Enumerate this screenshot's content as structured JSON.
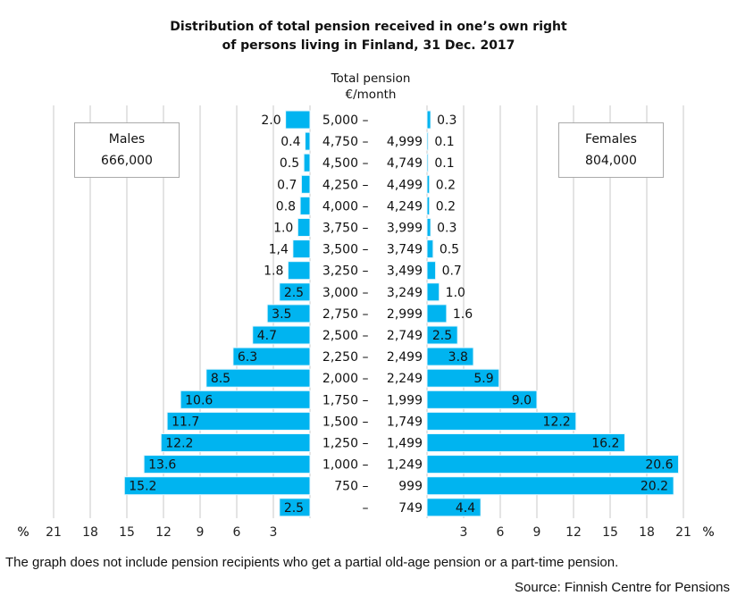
{
  "chart_data": {
    "type": "bar",
    "orientation": "horizontal-pyramid",
    "title_line1": "Distribution of total pension received in one’s own right",
    "title_line2": "of persons living in Finland, 31 Dec. 2017",
    "category_axis_label_line1": "Total pension",
    "category_axis_label_line2": "€/month",
    "categories": [
      "5,000 –",
      "4,750 – 4,999",
      "4,500 – 4,749",
      "4,250 – 4,499",
      "4,000 – 4,249",
      "3,750 – 3,999",
      "3,500 – 3,749",
      "3,250 – 3,499",
      "3,000 – 3,249",
      "2,750 – 2,999",
      "2,500 – 2,749",
      "2,250 – 2,499",
      "2,000 – 2,249",
      "1,750 – 1,999",
      "1,500 – 1,749",
      "1,250 – 1,499",
      "1,000 – 1,249",
      "750 – 999",
      "– 749"
    ],
    "series": [
      {
        "name": "Males",
        "total": "666,000",
        "values": [
          2.0,
          0.4,
          0.5,
          0.7,
          0.8,
          1.0,
          1.4,
          1.8,
          2.5,
          3.5,
          4.7,
          6.3,
          8.5,
          10.6,
          11.7,
          12.2,
          13.6,
          15.2,
          2.5
        ],
        "labels": [
          "2.0",
          "0.4",
          "0.5",
          "0.7",
          "0.8",
          "1.0",
          "1,4",
          "1.8",
          "2.5",
          "3.5",
          "4.7",
          "6.3",
          "8.5",
          "10.6",
          "11.7",
          "12.2",
          "13.6",
          "15.2",
          "2.5"
        ]
      },
      {
        "name": "Females",
        "total": "804,000",
        "values": [
          0.3,
          0.1,
          0.1,
          0.2,
          0.2,
          0.3,
          0.5,
          0.7,
          1.0,
          1.6,
          2.5,
          3.8,
          5.9,
          9.0,
          12.2,
          16.2,
          20.6,
          20.2,
          4.4
        ],
        "labels": [
          "0.3",
          "0.1",
          "0.1",
          "0.2",
          "0.2",
          "0.3",
          "0.5",
          "0.7",
          "1.0",
          "1.6",
          "2.5",
          "3.8",
          "5.9",
          "9.0",
          "12.2",
          "16.2",
          "20.6",
          "20.2",
          "4.4"
        ]
      }
    ],
    "xlim": [
      0,
      21
    ],
    "x_ticks": [
      "3",
      "6",
      "9",
      "12",
      "15",
      "18",
      "21"
    ],
    "x_unit": "%",
    "grid": true,
    "bar_color": "#00b4f0",
    "legend": "boxes top-left and top-right",
    "footnote": "The graph does not include pension recipients who get a partial old-age pension or a part-time pension.",
    "source": "Source: Finnish Centre for Pensions"
  }
}
